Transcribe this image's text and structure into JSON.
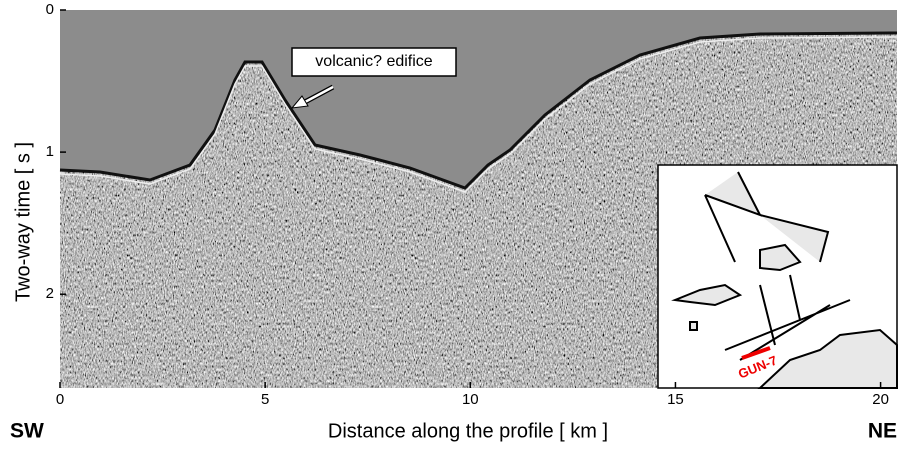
{
  "figure": {
    "type": "seismic-section",
    "x_label": "Distance along the profile  [ km ]",
    "y_label": "Two-way time  [ s ]",
    "xlim": [
      0,
      20.4
    ],
    "xticks": [
      0,
      5,
      10,
      15,
      20
    ],
    "ylim": [
      0,
      2.66
    ],
    "yticks": [
      0,
      1,
      2
    ],
    "annotation": "volcanic? edifice",
    "left_end": "SW",
    "right_end": "NE",
    "inset_label": "GUN-7"
  }
}
